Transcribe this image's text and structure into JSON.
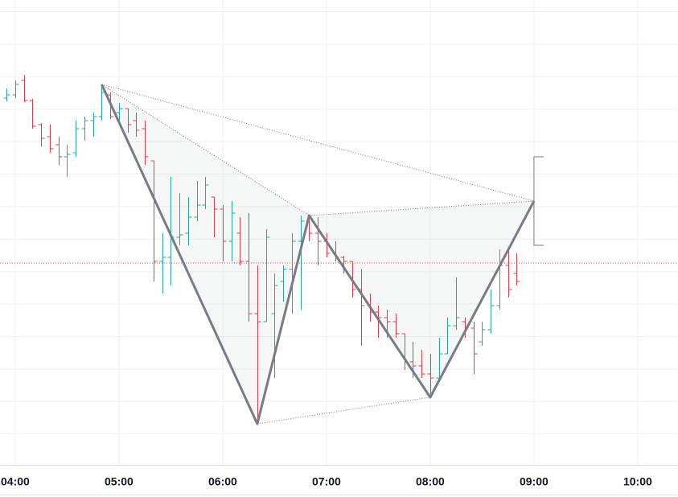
{
  "chart_data": {
    "type": "ohlc",
    "x": [
      235,
      240,
      245,
      250,
      255,
      260,
      265,
      270,
      275,
      280,
      285,
      290,
      295,
      300,
      305,
      310,
      315,
      320,
      325,
      330,
      335,
      340,
      345,
      350,
      355,
      360,
      365,
      370,
      375,
      380,
      385,
      390,
      395,
      400,
      405,
      410,
      415,
      420,
      425,
      430,
      435,
      440,
      445,
      450,
      455,
      460,
      465,
      470,
      475,
      480,
      485,
      490,
      495,
      500,
      505,
      510,
      515,
      520,
      525,
      530
    ],
    "open": [
      478,
      482,
      500,
      475,
      445,
      430,
      420,
      405,
      410,
      440,
      450,
      455,
      482,
      460,
      465,
      450,
      440,
      400,
      275,
      280,
      305,
      310,
      330,
      345,
      355,
      340,
      300,
      310,
      275,
      210,
      200,
      210,
      250,
      265,
      300,
      325,
      310,
      300,
      285,
      280,
      275,
      240,
      220,
      212,
      205,
      200,
      185,
      150,
      145,
      135,
      130,
      160,
      195,
      200,
      192,
      175,
      190,
      220,
      270,
      260
    ],
    "high": [
      490,
      500,
      507,
      477,
      447,
      445,
      430,
      420,
      450,
      455,
      460,
      495,
      485,
      472,
      465,
      460,
      450,
      400,
      310,
      380,
      360,
      355,
      375,
      380,
      355,
      345,
      350,
      330,
      335,
      270,
      315,
      260,
      270,
      310,
      332,
      330,
      330,
      310,
      300,
      282,
      275,
      265,
      235,
      220,
      215,
      210,
      185,
      175,
      165,
      160,
      180,
      205,
      255,
      205,
      200,
      200,
      240,
      290,
      290,
      285
    ],
    "low": [
      474,
      478,
      473,
      440,
      418,
      410,
      395,
      380,
      405,
      425,
      430,
      450,
      452,
      450,
      435,
      430,
      395,
      250,
      235,
      245,
      295,
      295,
      325,
      340,
      305,
      275,
      275,
      270,
      200,
      73,
      200,
      130,
      225,
      210,
      215,
      300,
      270,
      280,
      275,
      260,
      230,
      170,
      200,
      180,
      180,
      180,
      140,
      130,
      130,
      106,
      130,
      160,
      190,
      180,
      135,
      170,
      185,
      215,
      230,
      245
    ],
    "close": [
      482,
      495,
      475,
      443,
      428,
      415,
      405,
      408,
      440,
      450,
      455,
      485,
      455,
      465,
      445,
      438,
      405,
      275,
      280,
      305,
      308,
      330,
      345,
      370,
      340,
      300,
      335,
      275,
      210,
      200,
      305,
      245,
      265,
      300,
      325,
      310,
      300,
      285,
      280,
      275,
      240,
      220,
      212,
      205,
      200,
      185,
      150,
      145,
      135,
      130,
      160,
      195,
      205,
      192,
      160,
      190,
      220,
      270,
      240,
      250
    ],
    "up_color": "#22ab94",
    "down_color": "#f23645",
    "xlim": [
      231.2,
      623.3
    ],
    "ylim": [
      22,
      600
    ],
    "xticks": [
      {
        "value": 240,
        "label": "04:00"
      },
      {
        "value": 300,
        "label": "05:00"
      },
      {
        "value": 360,
        "label": "06:00"
      },
      {
        "value": 420,
        "label": "07:00"
      },
      {
        "value": 480,
        "label": "08:00"
      },
      {
        "value": 540,
        "label": "09:00"
      },
      {
        "value": 600,
        "label": "10:00"
      }
    ],
    "grid": true,
    "pattern": {
      "x": [
        290,
        380,
        410,
        480,
        540
      ],
      "values": [
        495,
        73,
        332,
        106,
        350
      ],
      "color": "#787b86"
    },
    "bracket": {
      "x": 540,
      "values": [
        405,
        295
      ]
    },
    "price_line": {
      "value": 273,
      "color": "#f23645"
    }
  }
}
